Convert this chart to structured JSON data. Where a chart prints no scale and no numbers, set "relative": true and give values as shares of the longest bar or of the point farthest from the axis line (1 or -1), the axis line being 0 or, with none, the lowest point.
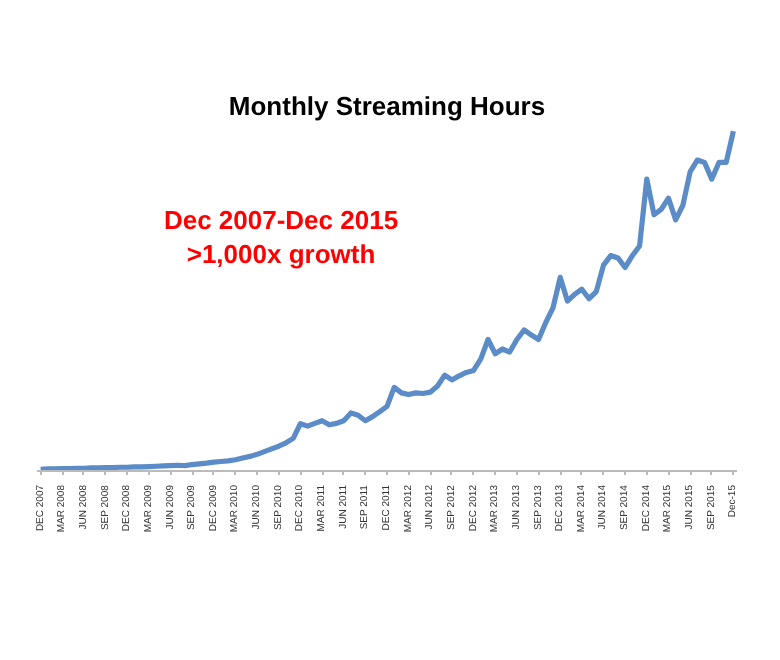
{
  "chart_data": {
    "type": "line",
    "title": "Monthly Streaming Hours",
    "relative": true,
    "annotations": [
      "Dec 2007-Dec 2015",
      ">1,000x growth"
    ],
    "categories": [
      "DEC 2007",
      null,
      null,
      "MAR 2008",
      null,
      null,
      "JUN 2008",
      null,
      null,
      "SEP 2008",
      null,
      null,
      "DEC 2008",
      null,
      null,
      "MAR 2009",
      null,
      null,
      "JUN 2009",
      null,
      null,
      "SEP 2009",
      null,
      null,
      "DEC 2009",
      null,
      null,
      "MAR 2010",
      null,
      null,
      "JUN 2010",
      null,
      null,
      "SEP 2010",
      null,
      null,
      "DEC 2010",
      null,
      null,
      "MAR 2011",
      null,
      null,
      "JUN 2011",
      null,
      null,
      "SEP 2011",
      null,
      null,
      "DEC 2011",
      null,
      null,
      "MAR 2012",
      null,
      null,
      "JUN 2012",
      null,
      null,
      "SEP 2012",
      null,
      null,
      "DEC 2012",
      null,
      null,
      "MAR 2013",
      null,
      null,
      "JUN 2013",
      null,
      null,
      "SEP 2013",
      null,
      null,
      "DEC 2013",
      null,
      null,
      "MAR 2014",
      null,
      null,
      "JUN 2014",
      null,
      null,
      "SEP 2014",
      null,
      null,
      "DEC 2014",
      null,
      null,
      "MAR 2015",
      null,
      null,
      "JUN 2015",
      null,
      null,
      "SEP 2015",
      null,
      null,
      "Dec-15"
    ],
    "series": [
      {
        "color": "#5b8cc8",
        "values": [
          0.005,
          0.006,
          0.006,
          0.007,
          0.007,
          0.008,
          0.008,
          0.009,
          0.009,
          0.01,
          0.01,
          0.011,
          0.011,
          0.012,
          0.012,
          0.013,
          0.014,
          0.015,
          0.016,
          0.017,
          0.016,
          0.019,
          0.021,
          0.023,
          0.026,
          0.028,
          0.03,
          0.033,
          0.038,
          0.043,
          0.049,
          0.057,
          0.065,
          0.073,
          0.083,
          0.096,
          0.139,
          0.132,
          0.14,
          0.148,
          0.136,
          0.14,
          0.148,
          0.171,
          0.164,
          0.148,
          0.16,
          0.175,
          0.19,
          0.246,
          0.23,
          0.225,
          0.23,
          0.228,
          0.232,
          0.25,
          0.282,
          0.268,
          0.28,
          0.29,
          0.296,
          0.33,
          0.387,
          0.345,
          0.359,
          0.35,
          0.387,
          0.415,
          0.4,
          0.387,
          0.437,
          0.48,
          0.57,
          0.5,
          0.52,
          0.535,
          0.507,
          0.528,
          0.606,
          0.634,
          0.627,
          0.599,
          0.634,
          0.662,
          0.859,
          0.754,
          0.77,
          0.803,
          0.739,
          0.782,
          0.88,
          0.915,
          0.908,
          0.859,
          0.908,
          0.908,
          1
        ]
      }
    ],
    "tick_labels": "x",
    "line_style": "solid"
  }
}
